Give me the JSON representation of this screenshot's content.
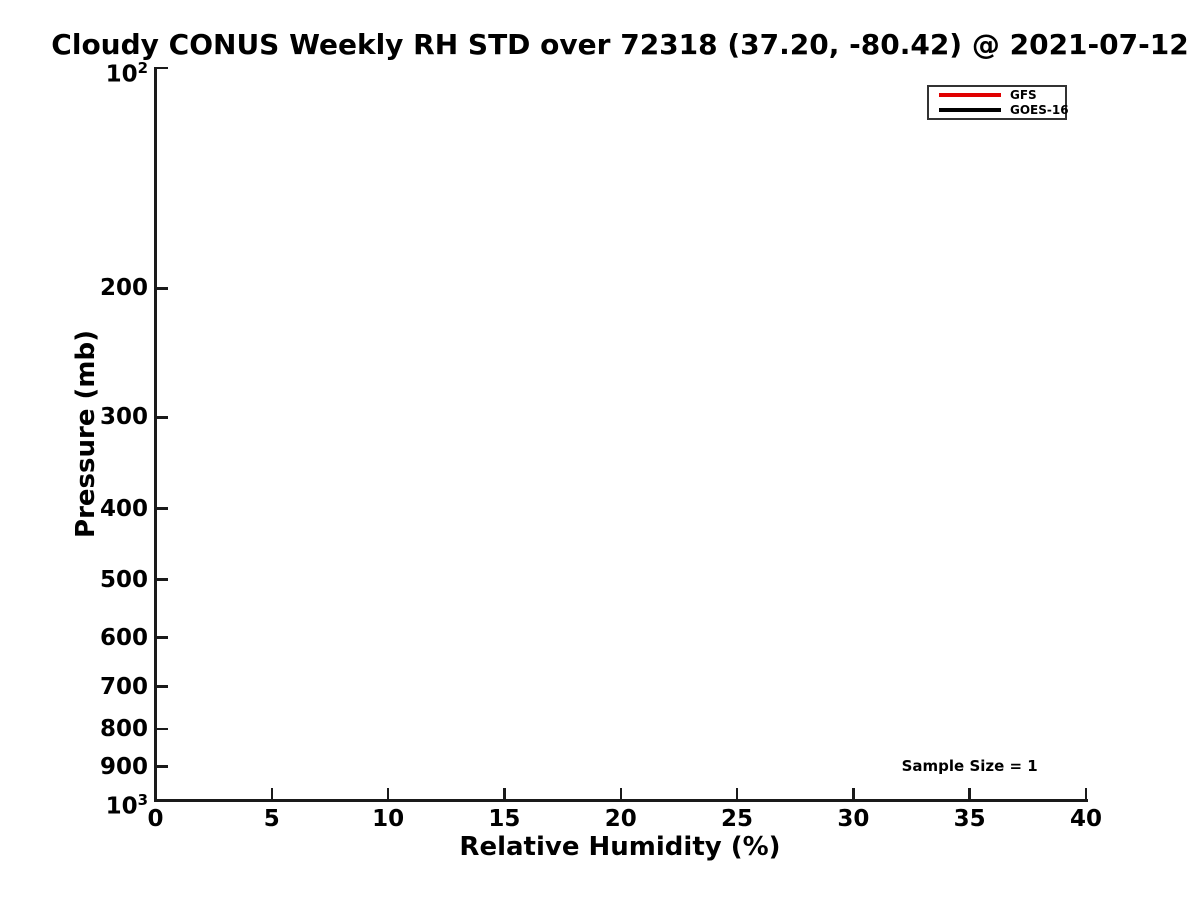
{
  "chart_data": {
    "type": "line",
    "title": "Cloudy CONUS Weekly RH STD over 72318 (37.20, -80.42) @ 2021-07-12",
    "xlabel": "Relative Humidity (%)",
    "ylabel": "Pressure (mb)",
    "xlim": [
      0,
      40
    ],
    "ylim": [
      100,
      1000
    ],
    "y_scale": "log",
    "y_axis_inverted": true,
    "grid": false,
    "x_ticks": [
      {
        "value": 0,
        "label": "0"
      },
      {
        "value": 5,
        "label": "5"
      },
      {
        "value": 10,
        "label": "10"
      },
      {
        "value": 15,
        "label": "15"
      },
      {
        "value": 20,
        "label": "20"
      },
      {
        "value": 25,
        "label": "25"
      },
      {
        "value": 30,
        "label": "30"
      },
      {
        "value": 35,
        "label": "35"
      },
      {
        "value": 40,
        "label": "40"
      }
    ],
    "y_ticks": [
      {
        "value": 100,
        "label": "10",
        "sup": "2"
      },
      {
        "value": 200,
        "label": "200"
      },
      {
        "value": 300,
        "label": "300"
      },
      {
        "value": 400,
        "label": "400"
      },
      {
        "value": 500,
        "label": "500"
      },
      {
        "value": 600,
        "label": "600"
      },
      {
        "value": 700,
        "label": "700"
      },
      {
        "value": 800,
        "label": "800"
      },
      {
        "value": 900,
        "label": "900"
      },
      {
        "value": 1000,
        "label": "10",
        "sup": "3"
      }
    ],
    "series": [
      {
        "name": "GFS",
        "color": "#e00000",
        "values": []
      },
      {
        "name": "GOES-16",
        "color": "#000000",
        "values": []
      }
    ],
    "legend_position": "upper right",
    "annotations": [
      {
        "text": "Sample Size = 1",
        "x": 35,
        "y": 900
      }
    ]
  }
}
